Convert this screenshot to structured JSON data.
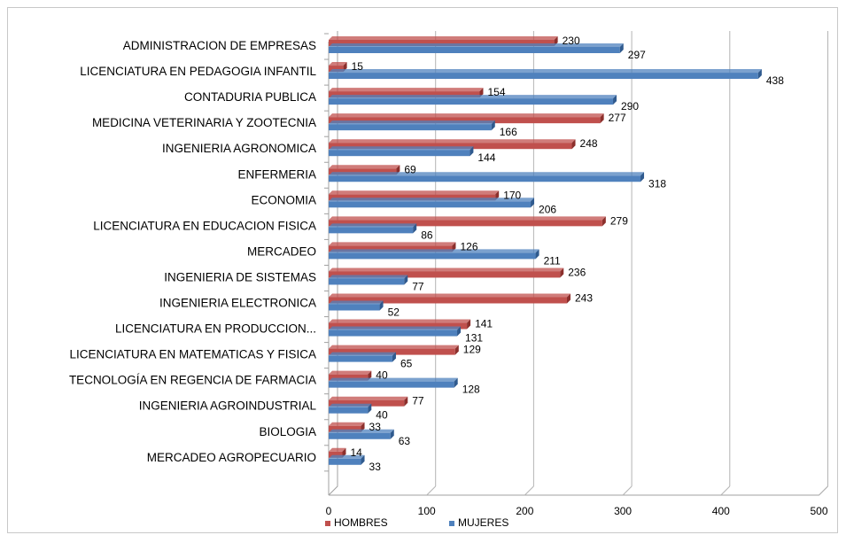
{
  "chart_data": {
    "type": "bar",
    "orientation": "horizontal",
    "title": "",
    "xlabel": "",
    "ylabel": "",
    "categories": [
      "ADMINISTRACION DE EMPRESAS",
      "LICENCIATURA EN PEDAGOGIA INFANTIL",
      "CONTADURIA PUBLICA",
      "MEDICINA VETERINARIA Y ZOOTECNIA",
      "INGENIERIA AGRONOMICA",
      "ENFERMERIA",
      "ECONOMIA",
      "LICENCIATURA EN EDUCACION FISICA",
      "MERCADEO",
      "INGENIERIA DE SISTEMAS",
      "INGENIERIA ELECTRONICA",
      "LICENCIATURA EN PRODUCCION...",
      "LICENCIATURA EN MATEMATICAS Y FISICA",
      "TECNOLOGÍA EN REGENCIA DE FARMACIA",
      "INGENIERIA AGROINDUSTRIAL",
      "BIOLOGIA",
      "MERCADEO AGROPECUARIO"
    ],
    "series": [
      {
        "name": "HOMBRES",
        "color": "#C0504D",
        "values": [
          230,
          15,
          154,
          277,
          248,
          69,
          170,
          279,
          126,
          236,
          243,
          141,
          129,
          40,
          77,
          33,
          14
        ]
      },
      {
        "name": "MUJERES",
        "color": "#4F81BD",
        "values": [
          297,
          438,
          290,
          166,
          144,
          318,
          206,
          86,
          211,
          77,
          52,
          131,
          65,
          128,
          40,
          63,
          33
        ]
      }
    ],
    "xlim": [
      0,
      500
    ],
    "xticks": [
      "0",
      "100",
      "200",
      "300",
      "400",
      "500"
    ],
    "grid": true,
    "legend_position": "bottom"
  }
}
